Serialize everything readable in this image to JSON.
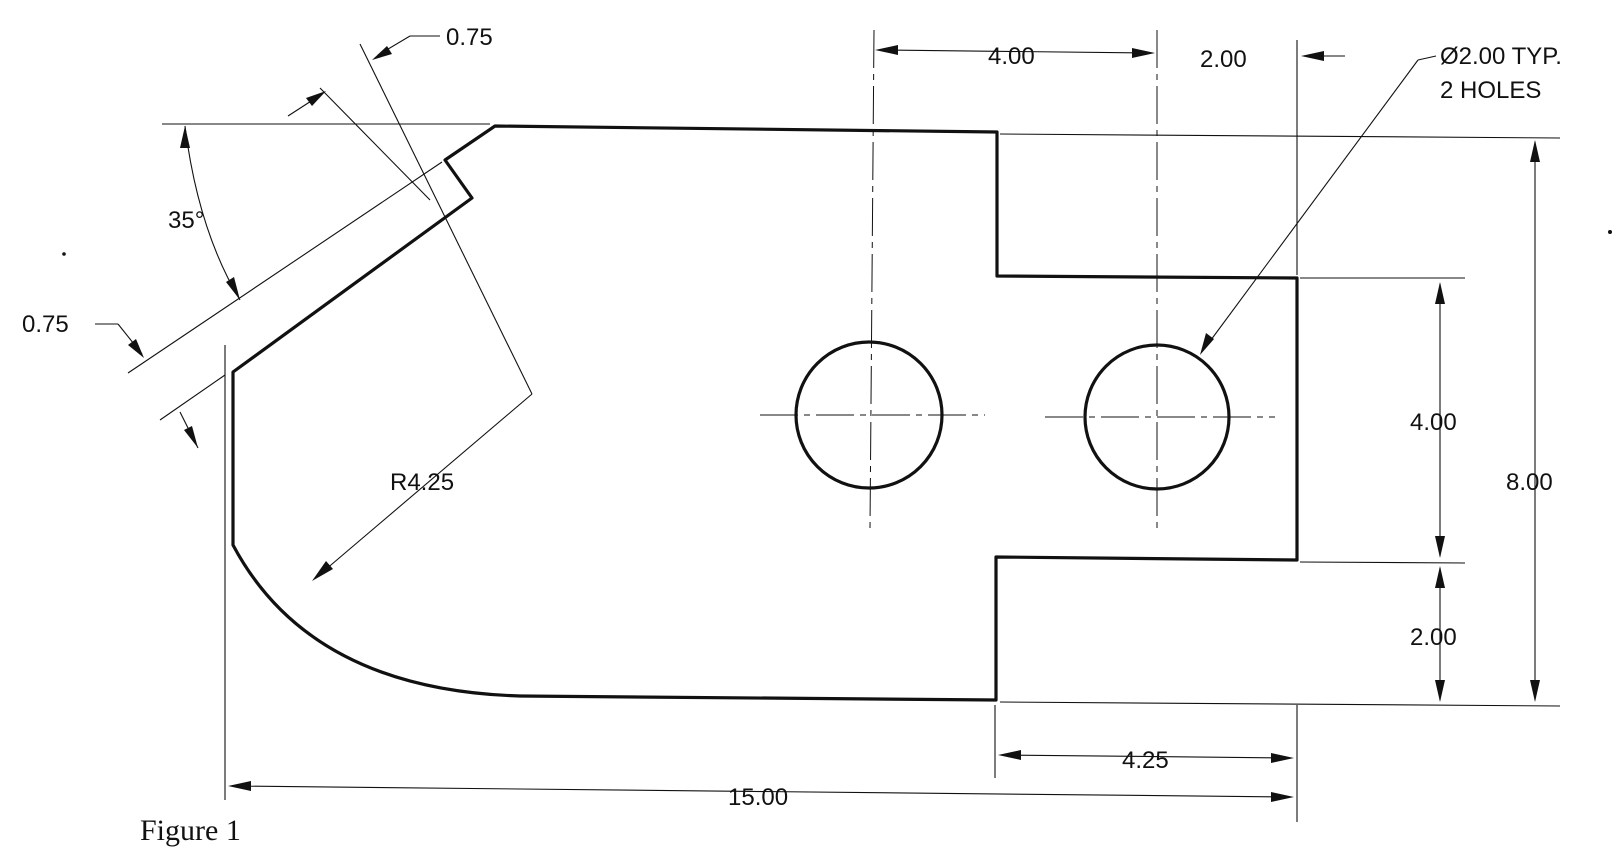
{
  "drawing": {
    "dimensions": {
      "slot_width_top": "0.75",
      "slot_width_left": "0.75",
      "angle": "35°",
      "radius": "R4.25",
      "hole_spacing": "4.00",
      "hole_edge_offset": "2.00",
      "hole_callout_line1": "Ø2.00 TYP.",
      "hole_callout_line2": "2 HOLES",
      "tab_height": "4.00",
      "lower_step": "2.00",
      "overall_height": "8.00",
      "tab_length": "4.25",
      "overall_length": "15.00"
    },
    "caption": "Figure 1"
  }
}
